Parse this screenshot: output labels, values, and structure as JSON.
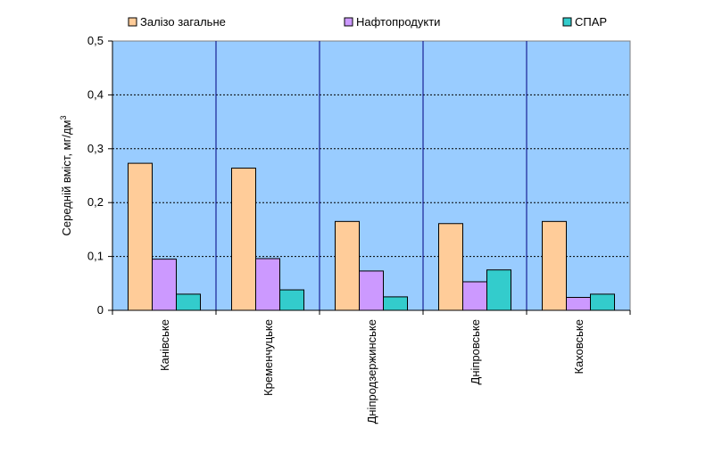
{
  "chart_data": {
    "type": "bar",
    "title": "",
    "xlabel": "",
    "ylabel": "Середній вміст, мг/дм",
    "ylabel_superscript": "3",
    "categories": [
      "Канівське",
      "Кременчуцьке",
      "Дніпродзержинське",
      "Дніпровське",
      "Каховське"
    ],
    "series": [
      {
        "name": "Залізо загальне",
        "color": "#FFCC99",
        "values": [
          0.273,
          0.264,
          0.165,
          0.161,
          0.165
        ]
      },
      {
        "name": "Нафтопродукти",
        "color": "#CC99FF",
        "values": [
          0.095,
          0.096,
          0.073,
          0.053,
          0.024
        ]
      },
      {
        "name": "СПАР",
        "color": "#33CCCC",
        "values": [
          0.03,
          0.038,
          0.025,
          0.075,
          0.03
        ]
      }
    ],
    "ylim": [
      0,
      0.5
    ],
    "yticks": [
      0,
      0.1,
      0.2,
      0.3,
      0.4,
      0.5
    ],
    "ytick_labels": [
      "0",
      "0,1",
      "0,2",
      "0,3",
      "0,4",
      "0,5"
    ],
    "grid": "horizontal dashed",
    "category_separators": true,
    "legend_position": "top",
    "plot_background": "#99CCFF",
    "separator_color": "#000080"
  }
}
